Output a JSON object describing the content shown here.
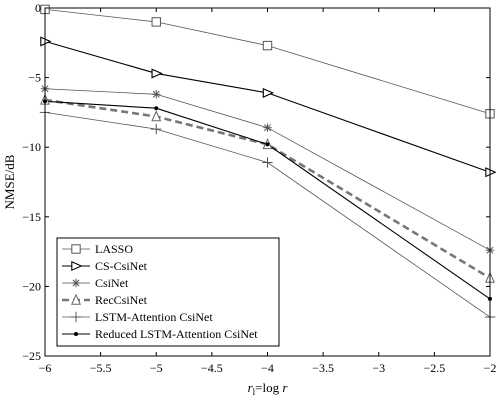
{
  "chart_data": {
    "type": "line",
    "title": "",
    "xlabel": "r_l=log r",
    "xlabel_parts": {
      "r": "r",
      "sub": "l",
      "eq": "=log ",
      "r2": "r"
    },
    "ylabel": "NMSE/dB",
    "xlim": [
      -6,
      -2
    ],
    "ylim": [
      -25,
      0
    ],
    "xticks": [
      -6,
      -5.5,
      -5,
      -4.5,
      -4,
      -3.5,
      -3,
      -2.5,
      -2
    ],
    "xtick_labels": [
      "−6",
      "−5.5",
      "−5",
      "−4.5",
      "−4",
      "−3.5",
      "−3",
      "−2.5",
      "−2"
    ],
    "yticks": [
      0,
      -5,
      -10,
      -15,
      -20,
      -25
    ],
    "ytick_labels": [
      "0",
      "−5",
      "−10",
      "−15",
      "−20",
      "−25"
    ],
    "grid": false,
    "legend_placement": "bottom-left",
    "x": [
      -6,
      -5,
      -4,
      -2
    ],
    "series": [
      {
        "name": "LASSO",
        "values": [
          -0.1,
          -1.0,
          -2.7,
          -7.6
        ],
        "marker": "square",
        "dash": "solid",
        "color": "#555555",
        "width": 0.8
      },
      {
        "name": "CS-CsiNet",
        "values": [
          -2.4,
          -4.7,
          -6.1,
          -11.8
        ],
        "marker": "triangle-right",
        "dash": "solid",
        "color": "#000000",
        "width": 1.1
      },
      {
        "name": "CsiNet",
        "values": [
          -5.8,
          -6.2,
          -8.6,
          -17.4
        ],
        "marker": "star",
        "dash": "solid",
        "color": "#555555",
        "width": 0.8
      },
      {
        "name": "RecCsiNet",
        "values": [
          -6.6,
          -7.8,
          -9.8,
          -19.4
        ],
        "marker": "triangle-up",
        "dash": "dashed",
        "color": "#777777",
        "width": 2.6
      },
      {
        "name": "LSTM-Attention CsiNet",
        "values": [
          -7.5,
          -8.7,
          -11.1,
          -22.2
        ],
        "marker": "plus",
        "dash": "solid",
        "color": "#555555",
        "width": 0.8
      },
      {
        "name": "Reduced LSTM-Attention CsiNet",
        "values": [
          -6.7,
          -7.2,
          -9.8,
          -20.9
        ],
        "marker": "dot",
        "dash": "solid",
        "color": "#000000",
        "width": 1.1
      }
    ]
  }
}
